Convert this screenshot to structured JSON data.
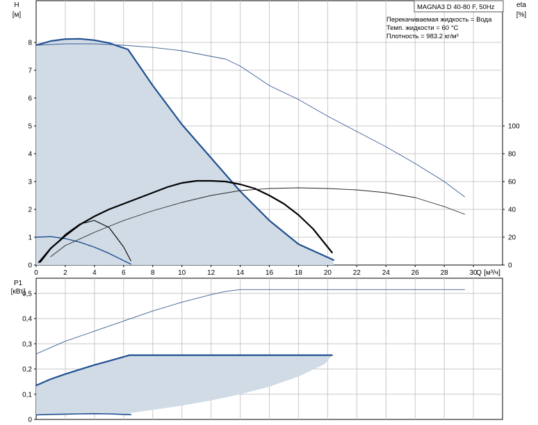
{
  "model_label": "MAGNA3 D 40-80 F, 50Hz",
  "info": {
    "liquid": "Перекачиваемая жидкость = Вода",
    "temperature": "Темп. жидкости = 60 °C",
    "density": "Плотность = 983.2 кг/м³"
  },
  "colors": {
    "area_fill": "#d0dbe6",
    "curve_blue": "#1f4f8f",
    "curve_thin": "#3a5c94",
    "curve_black": "#000000",
    "grid": "#c8c8c8",
    "axis": "#000000"
  },
  "chart_data": [
    {
      "type": "line",
      "title": "",
      "xlabel": "Q [м³/ч]",
      "xlabel_q": "Q",
      "xlabel_unit": "[м³/ч]",
      "ylabel": "H",
      "ylabel_unit": "[м]",
      "y2label": "eta",
      "y2label_unit": "[%]",
      "xlim": [
        0,
        32
      ],
      "ylim": [
        0,
        9.5
      ],
      "y2lim": [
        0,
        190
      ],
      "x_ticks": [
        "0",
        "2",
        "4",
        "6",
        "8",
        "10",
        "12",
        "14",
        "16",
        "18",
        "20",
        "22",
        "24",
        "26",
        "28",
        "30"
      ],
      "y_ticks": [
        "0",
        "1",
        "2",
        "3",
        "4",
        "5",
        "6",
        "7",
        "8"
      ],
      "y2_ticks": [
        "0",
        "20",
        "40",
        "60",
        "80",
        "100"
      ],
      "grid": true,
      "series": [
        {
          "role": "max-area-boundary",
          "x": [
            0,
            1,
            2,
            3,
            4,
            5,
            6,
            6.3,
            8,
            10,
            12,
            14,
            16,
            18,
            20.4,
            20.4,
            20,
            19,
            18,
            16,
            14,
            12,
            10,
            8,
            6,
            4,
            2,
            0
          ],
          "y": [
            7.9,
            8.05,
            8.12,
            8.13,
            8.08,
            7.98,
            7.8,
            7.75,
            6.45,
            5.05,
            3.85,
            2.65,
            1.6,
            0.75,
            0.18,
            0,
            0,
            0,
            0,
            0,
            0,
            0,
            0,
            0,
            0,
            0,
            0,
            0
          ]
        },
        {
          "role": "max-curve-blue",
          "x": [
            0,
            1,
            2,
            3,
            4,
            5,
            6,
            6.3,
            8,
            10,
            12,
            14,
            16,
            18,
            20.4
          ],
          "y": [
            7.9,
            8.05,
            8.12,
            8.13,
            8.08,
            7.98,
            7.8,
            7.75,
            6.45,
            5.05,
            3.85,
            2.65,
            1.6,
            0.75,
            0.18
          ]
        },
        {
          "role": "min-curve-blue",
          "x": [
            0,
            1,
            2,
            3,
            4,
            5,
            6,
            6.5
          ],
          "y": [
            1.0,
            1.02,
            0.95,
            0.82,
            0.64,
            0.42,
            0.16,
            0.03
          ]
        },
        {
          "role": "h-thin-curve",
          "x": [
            0,
            2,
            4,
            6,
            8,
            10,
            12,
            13,
            14,
            16,
            18,
            20,
            22,
            24,
            26,
            28,
            29.4
          ],
          "y": [
            7.9,
            7.95,
            7.95,
            7.9,
            7.82,
            7.7,
            7.5,
            7.4,
            7.15,
            6.45,
            5.95,
            5.35,
            4.8,
            4.25,
            3.65,
            3.0,
            2.45
          ]
        },
        {
          "role": "eta-black-bold",
          "x": [
            0.2,
            1,
            2,
            3,
            4,
            5,
            6,
            7,
            8,
            9,
            10,
            11,
            12,
            13,
            14,
            15,
            16,
            17,
            18,
            19,
            20.3
          ],
          "y": [
            2,
            12,
            21,
            29,
            35,
            40,
            44,
            48,
            52,
            56,
            59,
            60.5,
            60.5,
            60,
            58,
            55,
            50,
            44,
            36,
            26,
            9
          ]
        },
        {
          "role": "eta-black-thin",
          "x": [
            0.3,
            1,
            2,
            3,
            4,
            5,
            6,
            6.5
          ],
          "y": [
            2,
            11.5,
            22,
            29.5,
            32,
            27,
            13,
            3
          ]
        },
        {
          "role": "eta-thin-curve",
          "x": [
            1,
            2,
            4,
            6,
            8,
            10,
            12,
            14,
            16,
            18,
            20,
            22,
            24,
            26,
            28,
            29.4
          ],
          "y": [
            6,
            14,
            23.5,
            32,
            39,
            45,
            50,
            53.5,
            55,
            55.5,
            55,
            54,
            52,
            48.5,
            42,
            36.5
          ]
        }
      ]
    },
    {
      "type": "line",
      "title": "",
      "ylabel": "P1",
      "ylabel_unit": "[кВт]",
      "xlim": [
        0,
        32
      ],
      "ylim": [
        0,
        0.56
      ],
      "y_ticks": [
        "0",
        "0,1",
        "0,2",
        "0,3",
        "0,4",
        "0,5"
      ],
      "grid": true,
      "series": [
        {
          "role": "p1-area-boundary",
          "x": [
            0,
            1,
            2,
            3,
            4,
            5,
            6,
            6.4,
            8,
            10,
            12,
            14,
            16,
            18,
            20,
            20.3,
            19.8,
            18,
            16,
            14,
            12,
            10,
            8,
            6.4,
            6.4,
            4,
            2,
            0
          ],
          "y": [
            0.135,
            0.16,
            0.18,
            0.198,
            0.216,
            0.232,
            0.248,
            0.255,
            0.255,
            0.255,
            0.255,
            0.255,
            0.255,
            0.255,
            0.255,
            0.255,
            0.22,
            0.17,
            0.13,
            0.1,
            0.075,
            0.055,
            0.038,
            0.025,
            0.02,
            0.022,
            0.02,
            0.018
          ]
        },
        {
          "role": "p1-max-blue",
          "x": [
            0,
            1,
            2,
            3,
            4,
            5,
            6,
            6.4,
            8,
            10,
            12,
            14,
            16,
            18,
            20,
            20.3
          ],
          "y": [
            0.135,
            0.16,
            0.18,
            0.198,
            0.216,
            0.232,
            0.248,
            0.255,
            0.255,
            0.255,
            0.255,
            0.255,
            0.255,
            0.255,
            0.255,
            0.255
          ]
        },
        {
          "role": "p1-min-blue",
          "x": [
            0,
            1,
            2,
            3,
            4,
            5,
            6,
            6.5
          ],
          "y": [
            0.018,
            0.02,
            0.021,
            0.022,
            0.023,
            0.022,
            0.02,
            0.019
          ]
        },
        {
          "role": "p1-thin-curve",
          "x": [
            0,
            2,
            4,
            6,
            8,
            10,
            12,
            13,
            14,
            16,
            18,
            20,
            22,
            24,
            26,
            28,
            29.4
          ],
          "y": [
            0.26,
            0.31,
            0.35,
            0.39,
            0.43,
            0.465,
            0.495,
            0.508,
            0.515,
            0.515,
            0.515,
            0.515,
            0.515,
            0.515,
            0.515,
            0.515,
            0.515
          ]
        }
      ]
    }
  ]
}
